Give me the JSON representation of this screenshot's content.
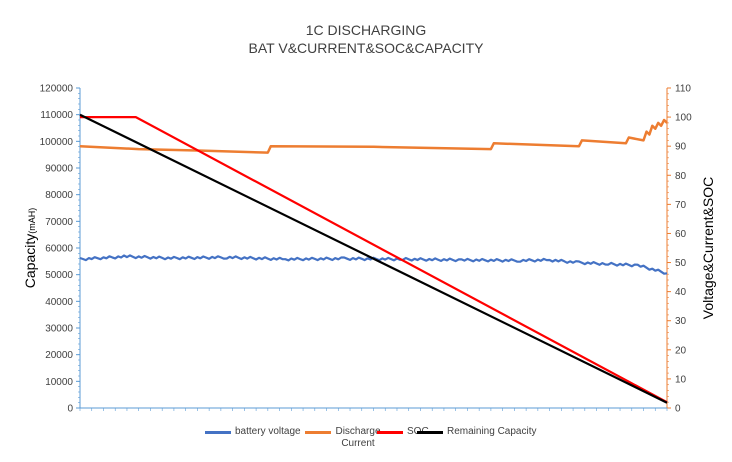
{
  "chart_data": {
    "type": "line",
    "title": "1C DISCHARGING",
    "subtitle": "BAT V&CURRENT&SOC&CAPACITY",
    "y_left": {
      "label": "Capacity",
      "unit": "(mAH)",
      "range": [
        0,
        120000
      ],
      "ticks": [
        "0",
        "10000",
        "20000",
        "30000",
        "40000",
        "50000",
        "60000",
        "70000",
        "80000",
        "90000",
        "100000",
        "110000",
        "120000"
      ]
    },
    "y_right": {
      "label": "Voltage&Current&SOC",
      "range": [
        0,
        110
      ],
      "ticks": [
        "0",
        "10",
        "20",
        "30",
        "40",
        "50",
        "60",
        "70",
        "80",
        "90",
        "100",
        "110"
      ]
    },
    "x": {
      "range": [
        0,
        100
      ]
    },
    "legend": {
      "position": "bottom"
    },
    "series": [
      {
        "name": "battery voltage",
        "color": "#4472C4",
        "axis": "left",
        "x": [
          0,
          8,
          15,
          25,
          35,
          45,
          55,
          65,
          75,
          80,
          85,
          90,
          95,
          100
        ],
        "y": [
          55800,
          56800,
          56200,
          56500,
          55800,
          56000,
          55800,
          55500,
          55300,
          55500,
          54500,
          54000,
          53500,
          50500
        ]
      },
      {
        "name": "Discharge Current",
        "color": "#ED7D31",
        "axis": "right",
        "x": [
          0,
          10,
          20,
          32,
          32.5,
          50,
          70,
          70.5,
          85,
          85.5,
          93,
          93.5,
          96,
          96.5,
          97,
          97.5,
          98,
          98.5,
          99,
          99.5,
          100
        ],
        "y": [
          90,
          89,
          88.5,
          87.8,
          90,
          89.8,
          89,
          91,
          90,
          92,
          91,
          93,
          92,
          95,
          94,
          97,
          96,
          98,
          97,
          99,
          98
        ]
      },
      {
        "name": "SOC",
        "color": "#FF0000",
        "axis": "right",
        "x": [
          0,
          9.5,
          100
        ],
        "y": [
          100,
          100,
          2
        ]
      },
      {
        "name": "Remaining Capacity",
        "color": "#000000",
        "axis": "left",
        "x": [
          0,
          100
        ],
        "y": [
          110000,
          2000
        ]
      }
    ]
  }
}
